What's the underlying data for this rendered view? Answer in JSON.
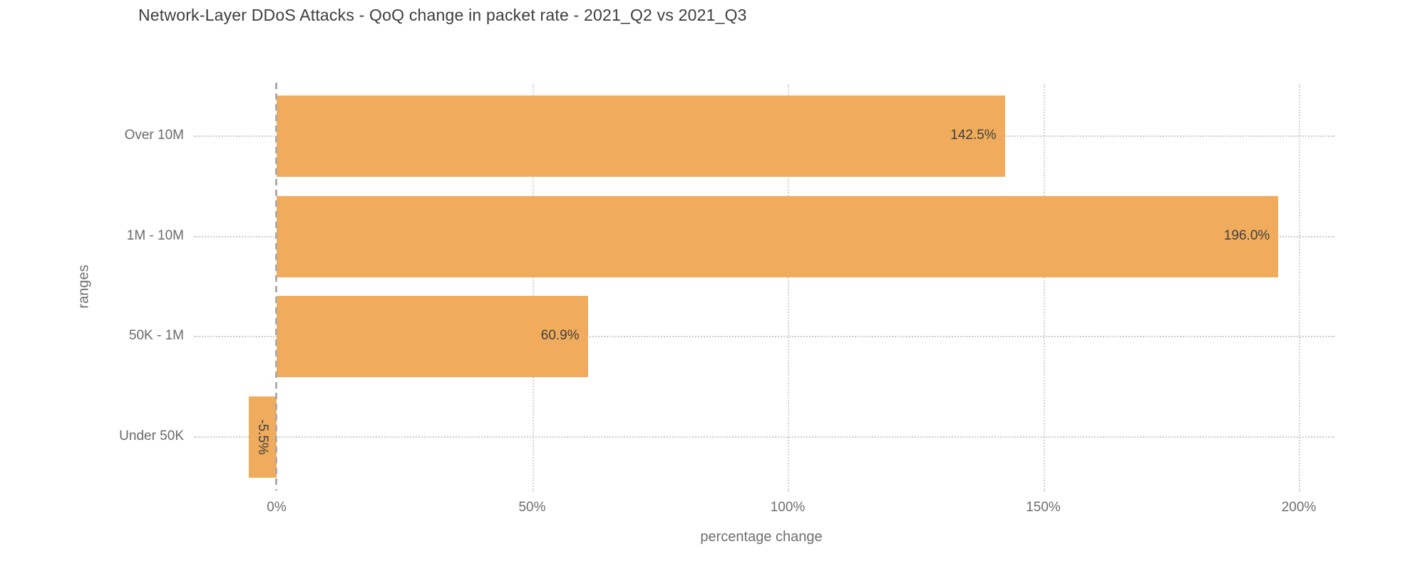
{
  "chart_data": {
    "type": "bar",
    "orientation": "horizontal",
    "title": "Network-Layer DDoS Attacks - QoQ change in packet rate - 2021_Q2 vs 2021_Q3",
    "xlabel": "percentage change",
    "ylabel": "ranges",
    "categories": [
      "Over 10M",
      "1M - 10M",
      "50K - 1M",
      "Under 50K"
    ],
    "values": [
      142.5,
      196.0,
      60.9,
      -5.5
    ],
    "bar_labels": [
      "142.5%",
      "196.0%",
      "60.9%",
      "-5.5%"
    ],
    "xticks": {
      "values": [
        0,
        50,
        100,
        150,
        200
      ],
      "labels": [
        "0%",
        "50%",
        "100%",
        "150%",
        "200%"
      ]
    },
    "xlim": [
      -16,
      207
    ],
    "grid": "vertical dotted gridlines at ticks, dashed zero line, dotted row leader lines",
    "legend": "none",
    "colors": {
      "bar_fill": "#F0AC5C",
      "title_text": "#3d3d3d",
      "axis_text": "#6e6e6e",
      "bar_label_text": "#3f3f3f",
      "zero_line": "#ababab",
      "gridline": "#d4d4d4",
      "leader_line": "#cccccc",
      "background": "#ffffff"
    }
  }
}
